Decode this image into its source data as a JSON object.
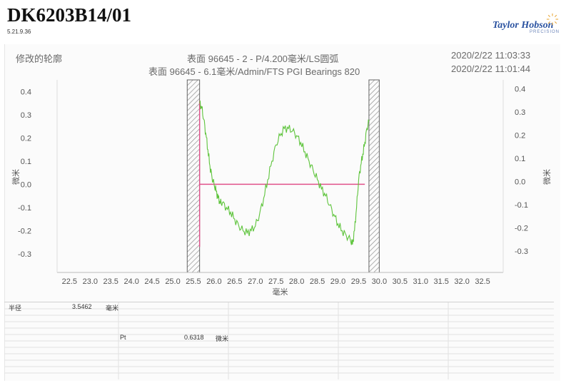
{
  "report": {
    "title": "DK6203B14/01",
    "version": "5.21.9.36"
  },
  "brand": {
    "name": "Taylor Hobson",
    "sub": "PRECISION"
  },
  "header": {
    "left_label": "修改的轮廓",
    "line1": "表面 96645 - 2 - P/4.200毫米/LS圆弧",
    "line2": "表面 96645 - 6.1毫米/Admin/FTS PGI Bearings 820",
    "time1": "2020/2/22 11:03:33",
    "time2": "2020/2/22 11:01:44"
  },
  "chart_data": {
    "type": "line",
    "title": "",
    "xlabel": "毫米",
    "ylabel": "微米",
    "ylabel_right": "微米",
    "xlim": [
      22.2,
      33.0
    ],
    "ylim": [
      -0.38,
      0.45
    ],
    "x_ticks": [
      "22.5",
      "23.0",
      "23.5",
      "24.0",
      "24.5",
      "25.0",
      "25.5",
      "26.0",
      "26.5",
      "27.0",
      "27.5",
      "28.0",
      "28.5",
      "29.0",
      "29.5",
      "30.0",
      "30.5",
      "31.0",
      "31.5",
      "32.0",
      "32.5"
    ],
    "y_ticks_left": [
      "0.4",
      "0.3",
      "0.2",
      "0.1",
      "0.0",
      "-0.1",
      "-0.2",
      "-0.3"
    ],
    "y_ticks_right": [
      "0.4",
      "0.3",
      "0.2",
      "0.1",
      "0.0",
      "-0.1",
      "-0.2",
      "-0.3"
    ],
    "excluded_regions": [
      [
        25.35,
        25.65
      ],
      [
        29.75,
        30.0
      ]
    ],
    "reference_line": {
      "x": [
        25.65,
        29.65
      ],
      "y": 0.0,
      "color": "#e0508a"
    },
    "start_marker": {
      "x": 25.65,
      "y": [
        -0.27,
        0.36
      ],
      "color": "#e0508a"
    },
    "series": [
      {
        "color": "#5ec43c",
        "x": [
          25.65,
          25.7,
          25.75,
          25.8,
          25.85,
          25.9,
          25.95,
          26.0,
          26.05,
          26.1,
          26.15,
          26.2,
          26.3,
          26.4,
          26.5,
          26.6,
          26.7,
          26.8,
          26.9,
          27.0,
          27.1,
          27.2,
          27.3,
          27.4,
          27.5,
          27.6,
          27.7,
          27.8,
          27.9,
          28.0,
          28.1,
          28.2,
          28.3,
          28.4,
          28.5,
          28.6,
          28.7,
          28.8,
          28.9,
          29.0,
          29.1,
          29.2,
          29.3,
          29.35,
          29.4,
          29.45,
          29.5,
          29.55,
          29.6,
          29.65,
          29.7,
          29.75
        ],
        "y": [
          0.35,
          0.33,
          0.28,
          0.22,
          0.15,
          0.08,
          0.03,
          0.0,
          -0.03,
          -0.06,
          -0.08,
          -0.08,
          -0.1,
          -0.12,
          -0.15,
          -0.18,
          -0.2,
          -0.21,
          -0.2,
          -0.18,
          -0.13,
          -0.06,
          0.02,
          0.1,
          0.17,
          0.21,
          0.24,
          0.24,
          0.23,
          0.21,
          0.18,
          0.14,
          0.1,
          0.06,
          0.02,
          -0.02,
          -0.05,
          -0.09,
          -0.13,
          -0.17,
          -0.2,
          -0.22,
          -0.24,
          -0.26,
          -0.2,
          -0.1,
          0.02,
          0.08,
          0.13,
          0.18,
          0.24,
          0.27
        ]
      }
    ],
    "grid": false,
    "legend": "none"
  },
  "results": {
    "radius_label": "半径",
    "radius_value": "3.5462",
    "radius_unit": "毫米",
    "pt_label": "Pt",
    "pt_value": "0.6318",
    "pt_unit": "微米"
  }
}
